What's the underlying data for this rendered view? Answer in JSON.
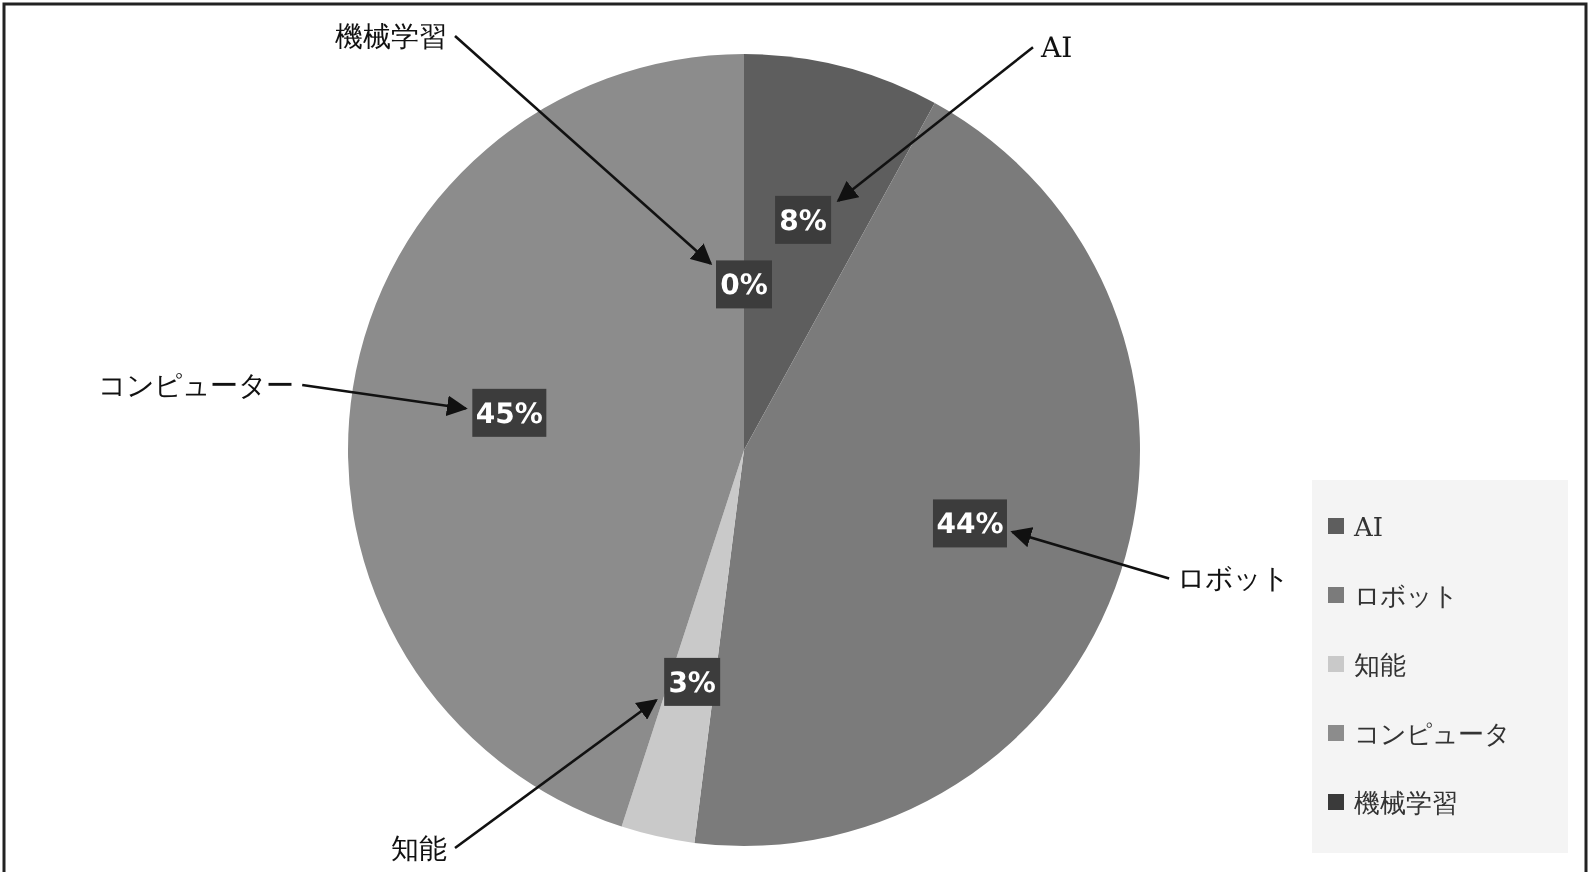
{
  "chart_data": {
    "type": "pie",
    "categories": [
      "AI",
      "ロボット",
      "知能",
      "コンピュータ",
      "機械学習"
    ],
    "values": [
      8,
      44,
      3,
      45,
      0
    ],
    "colors": [
      "#5e5e5e",
      "#7b7b7b",
      "#c9c9c9",
      "#8c8c8c",
      "#3a3a3a"
    ],
    "value_labels": [
      "8%",
      "44%",
      "3%",
      "45%",
      "0%"
    ],
    "legend": "right",
    "annotations": [
      "AI",
      "ロボット",
      "知能",
      "コンピューター",
      "機械学習"
    ]
  }
}
